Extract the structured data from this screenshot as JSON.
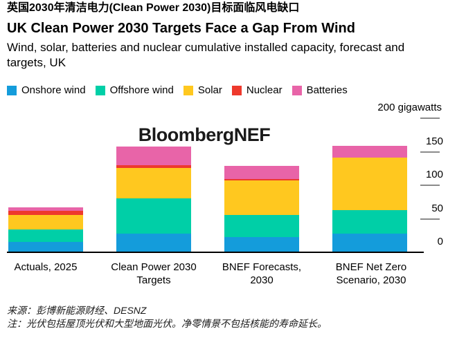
{
  "header": {
    "cn_title": "英国2030年清洁电力(Clean Power 2030)目标面临风电缺口",
    "en_title": "UK Clean Power 2030 Targets Face a Gap From Wind",
    "subtitle": "Wind, solar, batteries and nuclear cumulative installed capacity, forecast and targets, UK"
  },
  "watermark": "BloombergNEF",
  "chart_data": {
    "type": "bar",
    "stacked": true,
    "unit": "gigawatts",
    "title": "UK Clean Power 2030 Targets Face a Gap From Wind",
    "categories": [
      [
        "Actuals, 2025"
      ],
      [
        "Clean Power 2030",
        "Targets"
      ],
      [
        "BNEF Forecasts,",
        "2030"
      ],
      [
        "BNEF Net Zero",
        "Scenario, 2030"
      ]
    ],
    "series": [
      {
        "name": "Onshore wind",
        "color": "#149cdb",
        "values": [
          14,
          27,
          22,
          27
        ]
      },
      {
        "name": "Offshore wind",
        "color": "#00cfa7",
        "values": [
          19,
          52,
          33,
          35
        ]
      },
      {
        "name": "Solar",
        "color": "#ffc81f",
        "values": [
          22,
          46,
          51,
          78
        ]
      },
      {
        "name": "Nuclear",
        "color": "#ee392c",
        "values": [
          6,
          4,
          2,
          0
        ]
      },
      {
        "name": "Batteries",
        "color": "#e864a8",
        "values": [
          5,
          28,
          20,
          18
        ]
      }
    ],
    "totals": [
      66,
      157,
      128,
      158
    ],
    "ylim": [
      0,
      200
    ],
    "yticks": [
      0,
      50,
      100,
      150
    ],
    "tick_lines_at": [
      50,
      100,
      150,
      200
    ],
    "unit_label": "200 gigawatts",
    "legend_position": "top",
    "axis_side": "right",
    "grid": false
  },
  "footer": {
    "source": "来源：彭博新能源财经、DESNZ",
    "note": "注：光伏包括屋顶光伏和大型地面光伏。净零情景不包括核能的寿命延长。"
  }
}
